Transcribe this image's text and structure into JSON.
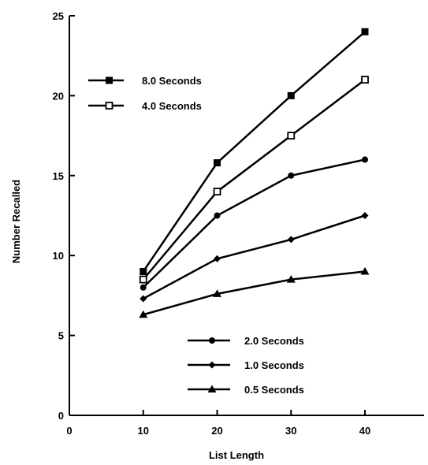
{
  "chart_data": {
    "type": "line",
    "xlabel": "List Length",
    "ylabel": "Number Recalled",
    "xlim": [
      0,
      48
    ],
    "ylim": [
      0,
      25
    ],
    "xticks": [
      0,
      10,
      20,
      30,
      40
    ],
    "yticks": [
      0,
      5,
      10,
      15,
      20,
      25
    ],
    "x": [
      10,
      20,
      30,
      40
    ],
    "series": [
      {
        "name": "8.0 Seconds",
        "marker": "filled-square",
        "values": [
          9.0,
          15.8,
          20.0,
          24.0
        ]
      },
      {
        "name": "4.0 Seconds",
        "marker": "open-square",
        "values": [
          8.5,
          14.0,
          17.5,
          21.0
        ]
      },
      {
        "name": "2.0 Seconds",
        "marker": "filled-circle",
        "values": [
          8.0,
          12.5,
          15.0,
          16.0
        ]
      },
      {
        "name": "1.0 Seconds",
        "marker": "diamond",
        "values": [
          7.3,
          9.8,
          11.0,
          12.5
        ]
      },
      {
        "name": "0.5 Seconds",
        "marker": "filled-triangle",
        "values": [
          6.3,
          7.6,
          8.5,
          9.0
        ]
      }
    ],
    "legend": [
      {
        "group": "upper-left",
        "items": [
          "8.0 Seconds",
          "4.0 Seconds"
        ]
      },
      {
        "group": "lower-right",
        "items": [
          "2.0 Seconds",
          "1.0 Seconds",
          "0.5 Seconds"
        ]
      }
    ],
    "grid": false,
    "colors": {
      "line": "#000000",
      "background": "#ffffff"
    }
  }
}
